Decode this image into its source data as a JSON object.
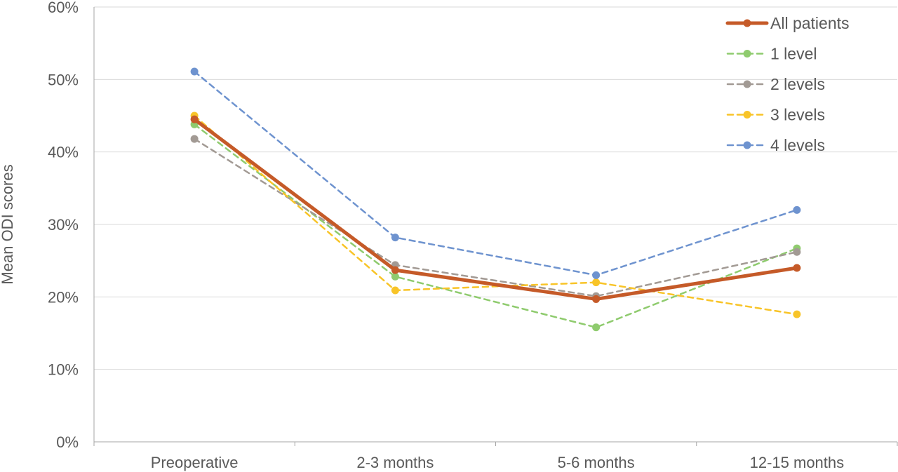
{
  "chart_data": {
    "type": "line",
    "title": "",
    "xlabel": "",
    "ylabel": "Mean ODI scores",
    "categories": [
      "Preoperative",
      "2-3 months",
      "5-6 months",
      "12-15 months"
    ],
    "ylim": [
      0,
      60
    ],
    "yticks": [
      "0%",
      "10%",
      "20%",
      "30%",
      "40%",
      "50%",
      "60%"
    ],
    "grid": true,
    "legend_position": "top-right",
    "series": [
      {
        "name": "All patients",
        "values": [
          44.5,
          23.7,
          19.7,
          24.0
        ],
        "color": "#C55A28",
        "style": "solid"
      },
      {
        "name": "1 level",
        "values": [
          43.8,
          22.8,
          15.8,
          26.7
        ],
        "color": "#8FCB6E",
        "style": "dashed"
      },
      {
        "name": "2 levels",
        "values": [
          41.8,
          24.4,
          20.1,
          26.2
        ],
        "color": "#A29A94",
        "style": "dashed"
      },
      {
        "name": "3 levels",
        "values": [
          45.0,
          20.9,
          22.0,
          17.6
        ],
        "color": "#F8C428",
        "style": "dashed"
      },
      {
        "name": "4 levels",
        "values": [
          51.1,
          28.2,
          23.0,
          32.0
        ],
        "color": "#6E93CF",
        "style": "dashed"
      }
    ]
  }
}
